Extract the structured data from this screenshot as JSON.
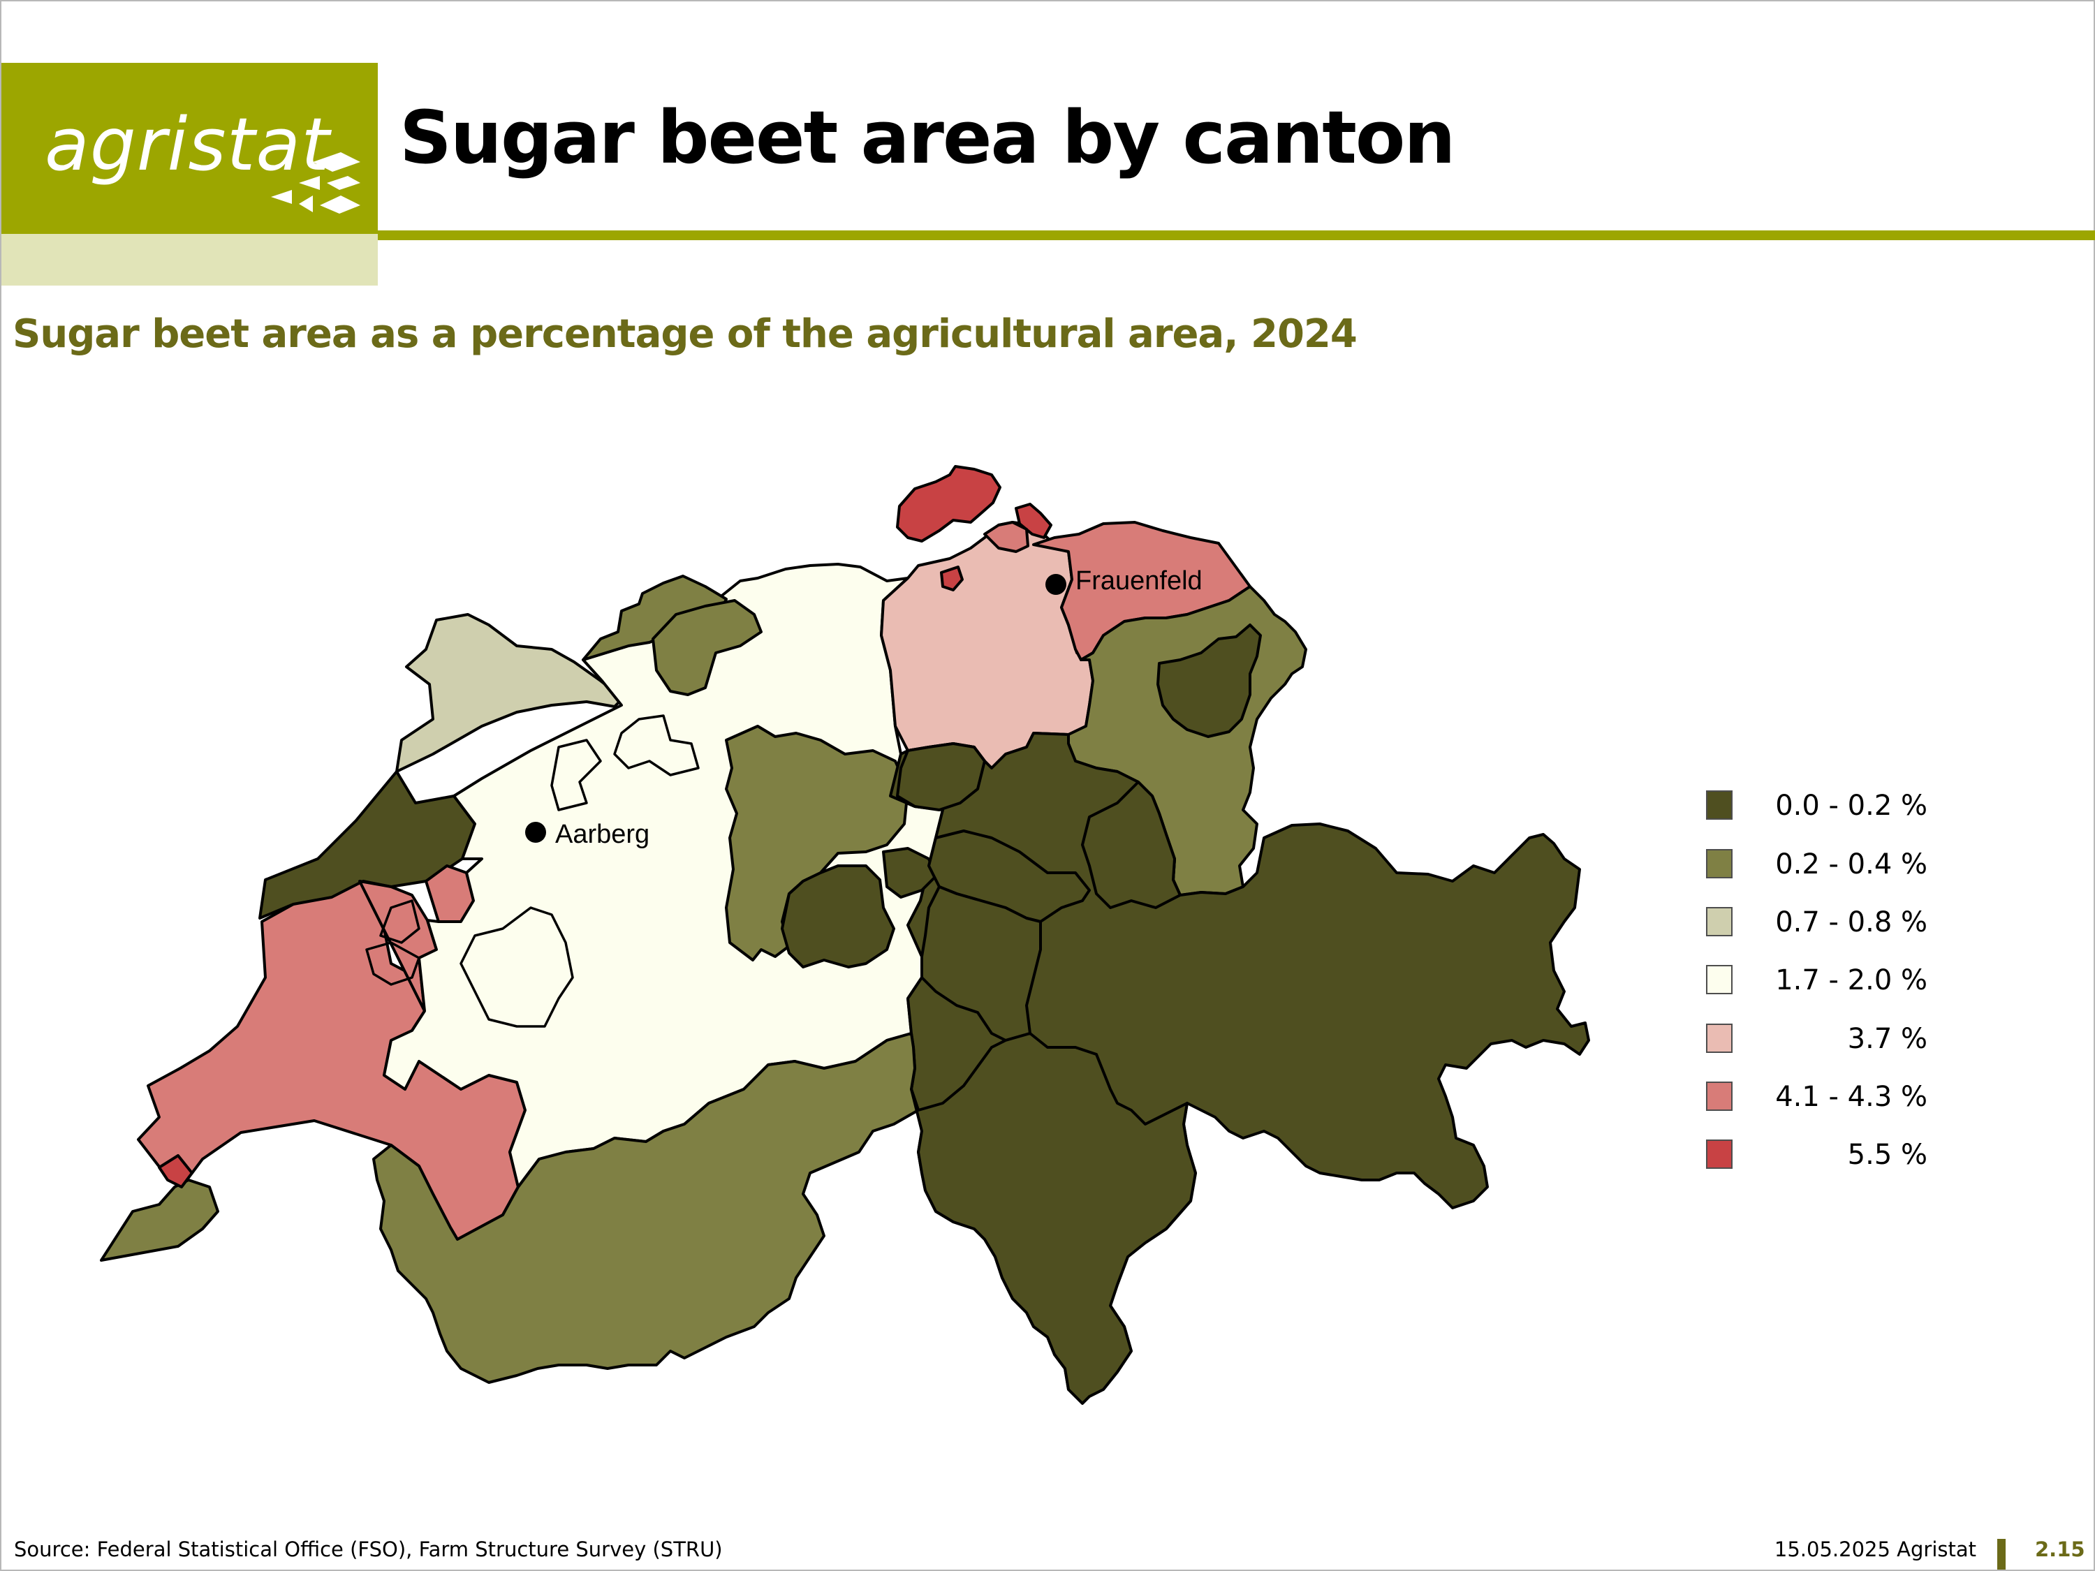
{
  "header": {
    "logo_text": "agristat",
    "title": "Sugar beet area by canton",
    "subtitle": "Sugar beet area as a percentage of the agricultural area, 2024"
  },
  "colors": {
    "brand": "#9ca600",
    "brand_light": "#e1e4b8",
    "subtitle": "#6b6a18"
  },
  "legend": [
    {
      "label": "0.0 - 0.2 %",
      "color": "#4f4f20"
    },
    {
      "label": "0.2 - 0.4 %",
      "color": "#7f8044"
    },
    {
      "label": "0.7 - 0.8 %",
      "color": "#cfcfae"
    },
    {
      "label": "1.7 - 2.0 %",
      "color": "#fdfeee"
    },
    {
      "label": "3.7 %",
      "color": "#eabcb3"
    },
    {
      "label": "4.1 - 4.3 %",
      "color": "#d87c78"
    },
    {
      "label": "5.5 %",
      "color": "#c84244"
    }
  ],
  "map": {
    "places": [
      {
        "name": "Frauenfeld"
      },
      {
        "name": "Aarberg"
      }
    ]
  },
  "footer": {
    "source": "Source: Federal Statistical Office (FSO), Farm Structure Survey (STRU)",
    "date": "15.05.2025 Agristat",
    "page": "2.15"
  }
}
